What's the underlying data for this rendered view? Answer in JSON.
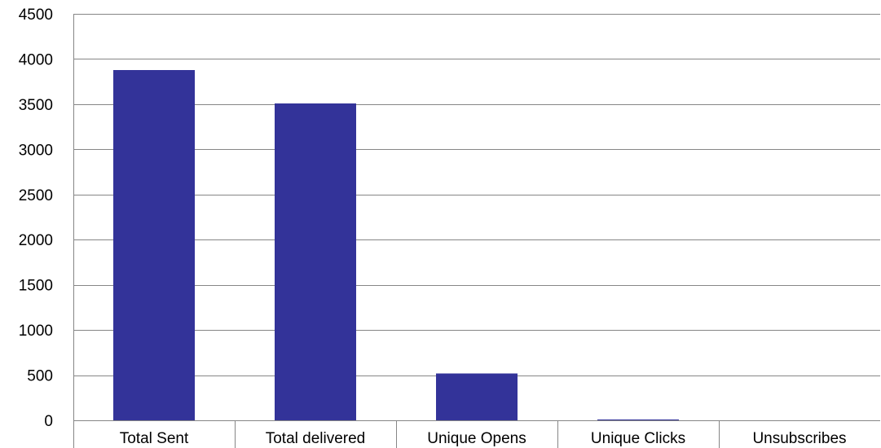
{
  "chart_data": {
    "type": "bar",
    "title": "",
    "xlabel": "",
    "ylabel": "",
    "categories": [
      "Total Sent",
      "Total delivered",
      "Unique Opens",
      "Unique Clicks",
      "Unsubscribes"
    ],
    "values": [
      3880,
      3510,
      520,
      10,
      0
    ],
    "ylim": [
      0,
      4500
    ],
    "yticks": [
      0,
      500,
      1000,
      1500,
      2000,
      2500,
      3000,
      3500,
      4000,
      4500
    ],
    "grid": true,
    "legend": "none",
    "colors": {
      "bar": "#333399",
      "grid": "#868686",
      "text": "#000000"
    }
  }
}
